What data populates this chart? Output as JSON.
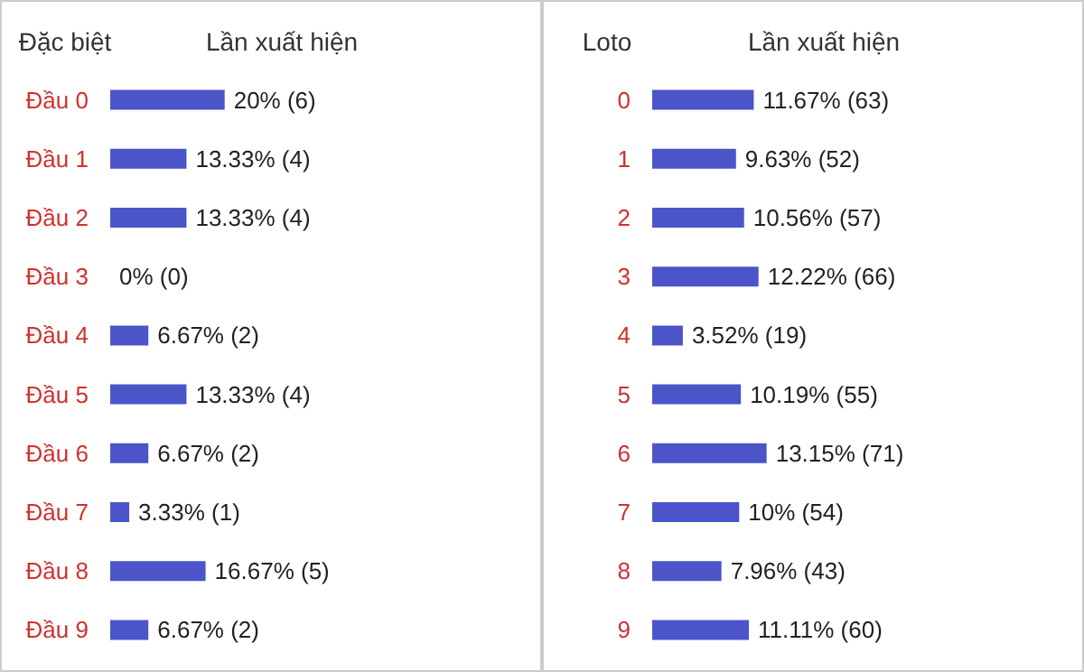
{
  "chart_data": [
    {
      "type": "bar",
      "orientation": "horizontal",
      "title": "Lần xuất hiện",
      "ylabel": "Đặc biệt",
      "color": "#4b55c9",
      "categories": [
        "Đầu 0",
        "Đầu 1",
        "Đầu 2",
        "Đầu 3",
        "Đầu 4",
        "Đầu 5",
        "Đầu 6",
        "Đầu 7",
        "Đầu 8",
        "Đầu 9"
      ],
      "values": [
        20,
        13.33,
        13.33,
        0,
        6.67,
        13.33,
        6.67,
        3.33,
        16.67,
        6.67
      ],
      "value_labels": [
        "20% (6)",
        "13.33% (4)",
        "13.33% (4)",
        "0% (0)",
        "6.67% (2)",
        "13.33% (4)",
        "6.67% (2)",
        "3.33% (1)",
        "16.67% (5)",
        "6.67% (2)"
      ]
    },
    {
      "type": "bar",
      "orientation": "horizontal",
      "title": "Lần xuất hiện",
      "ylabel": "Loto",
      "color": "#4b55c9",
      "categories": [
        "0",
        "1",
        "2",
        "3",
        "4",
        "5",
        "6",
        "7",
        "8",
        "9"
      ],
      "values": [
        11.67,
        9.63,
        10.56,
        12.22,
        3.52,
        10.19,
        13.15,
        10,
        7.96,
        11.11
      ],
      "value_labels": [
        "11.67% (63)",
        "9.63% (52)",
        "10.56% (57)",
        "12.22% (66)",
        "3.52% (19)",
        "10.19% (55)",
        "13.15% (71)",
        "10% (54)",
        "7.96% (43)",
        "11.11% (60)"
      ]
    }
  ]
}
